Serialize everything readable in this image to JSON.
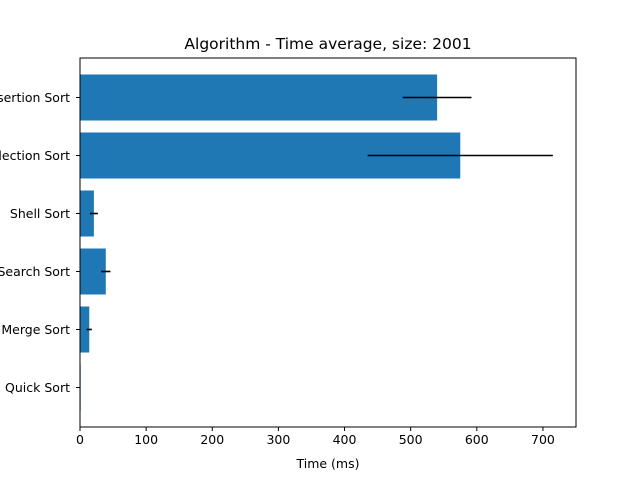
{
  "chart_data": {
    "type": "bar",
    "orientation": "horizontal",
    "title": "Algorithm - Time average, size: 2001",
    "xlabel": "Time (ms)",
    "ylabel": "",
    "xlim": [
      0,
      750
    ],
    "xticks": [
      0,
      100,
      200,
      300,
      400,
      500,
      600,
      700
    ],
    "categories": [
      "Insertion Sort",
      "Selection Sort",
      "Shell Sort",
      "Search Sort",
      "Merge Sort",
      "Quick Sort"
    ],
    "values": [
      540,
      575,
      21,
      39,
      14,
      1
    ],
    "errors": [
      52,
      140,
      6,
      7,
      4,
      0
    ],
    "bar_color": "#1f77b4",
    "error_color": "#000000",
    "grid": false,
    "legend": "none"
  }
}
